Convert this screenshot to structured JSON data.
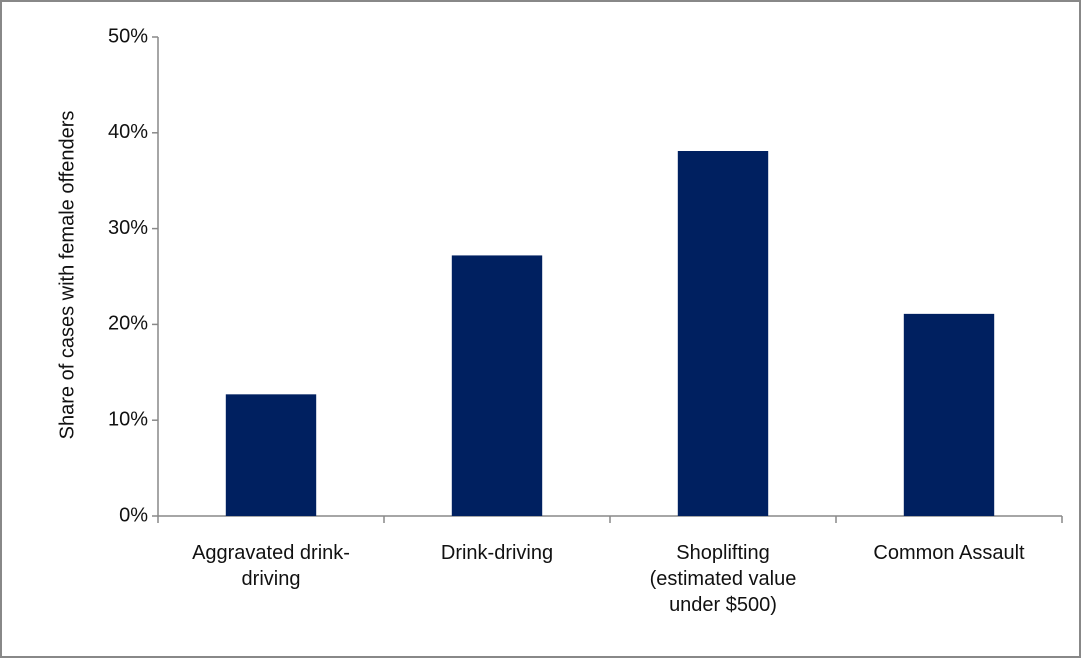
{
  "chart_data": {
    "type": "bar",
    "y_label": "Share of cases  with female offenders",
    "categories": [
      "Aggravated drink-driving",
      "Drink-driving",
      "Shoplifting (estimated value under $500)",
      "Common Assault"
    ],
    "values": [
      12.7,
      27.2,
      38.1,
      21.1
    ],
    "color": "#002060",
    "ylim": [
      0,
      50
    ],
    "yticks": [
      {
        "value": 0,
        "label": "0%"
      },
      {
        "value": 10,
        "label": "10%"
      },
      {
        "value": 20,
        "label": "20%"
      },
      {
        "value": 30,
        "label": "30%"
      },
      {
        "value": 40,
        "label": "40%"
      },
      {
        "value": 50,
        "label": "50%"
      }
    ],
    "grid": false
  }
}
